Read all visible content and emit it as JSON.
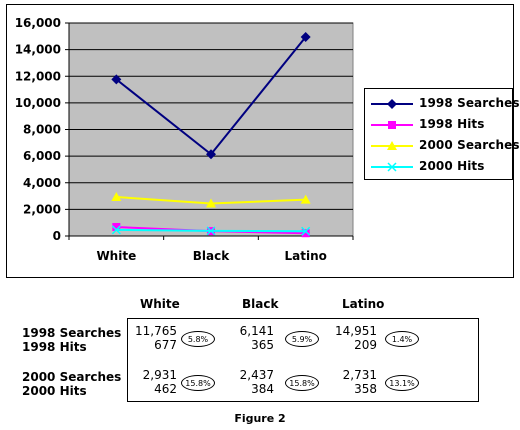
{
  "chart_data": {
    "type": "line",
    "categories": [
      "White",
      "Black",
      "Latino"
    ],
    "ylim": [
      0,
      16000
    ],
    "yticks": [
      0,
      2000,
      4000,
      6000,
      8000,
      10000,
      12000,
      14000,
      16000
    ],
    "ytick_labels": [
      "0",
      "2,000",
      "4,000",
      "6,000",
      "8,000",
      "10,000",
      "12,000",
      "14,000",
      "16,000"
    ],
    "grid": true,
    "legend_position": "right",
    "series": [
      {
        "name": "1998 Searches",
        "values": [
          11765,
          6141,
          14951
        ],
        "color": "#000080",
        "marker": "diamond"
      },
      {
        "name": "1998 Hits",
        "values": [
          677,
          365,
          209
        ],
        "color": "#ff00ff",
        "marker": "square"
      },
      {
        "name": "2000 Searches",
        "values": [
          2931,
          2437,
          2731
        ],
        "color": "#ffff00",
        "marker": "triangle"
      },
      {
        "name": "2000 Hits",
        "values": [
          462,
          384,
          358
        ],
        "color": "#00ffff",
        "marker": "x"
      }
    ],
    "plot_background": "#c0c0c0"
  },
  "table": {
    "columns": [
      "White",
      "Black",
      "Latino"
    ],
    "rows": [
      {
        "labels": [
          "1998 Searches",
          "1998 Hits"
        ],
        "cells": [
          {
            "searches": "11,765",
            "hits": "677",
            "pct": "5.8%"
          },
          {
            "searches": "6,141",
            "hits": "365",
            "pct": "5.9%"
          },
          {
            "searches": "14,951",
            "hits": "209",
            "pct": "1.4%"
          }
        ]
      },
      {
        "labels": [
          "2000 Searches",
          "2000 Hits"
        ],
        "cells": [
          {
            "searches": "2,931",
            "hits": "462",
            "pct": "15.8%"
          },
          {
            "searches": "2,437",
            "hits": "384",
            "pct": "15.8%"
          },
          {
            "searches": "2,731",
            "hits": "358",
            "pct": "13.1%"
          }
        ]
      }
    ]
  },
  "caption": "Figure 2"
}
